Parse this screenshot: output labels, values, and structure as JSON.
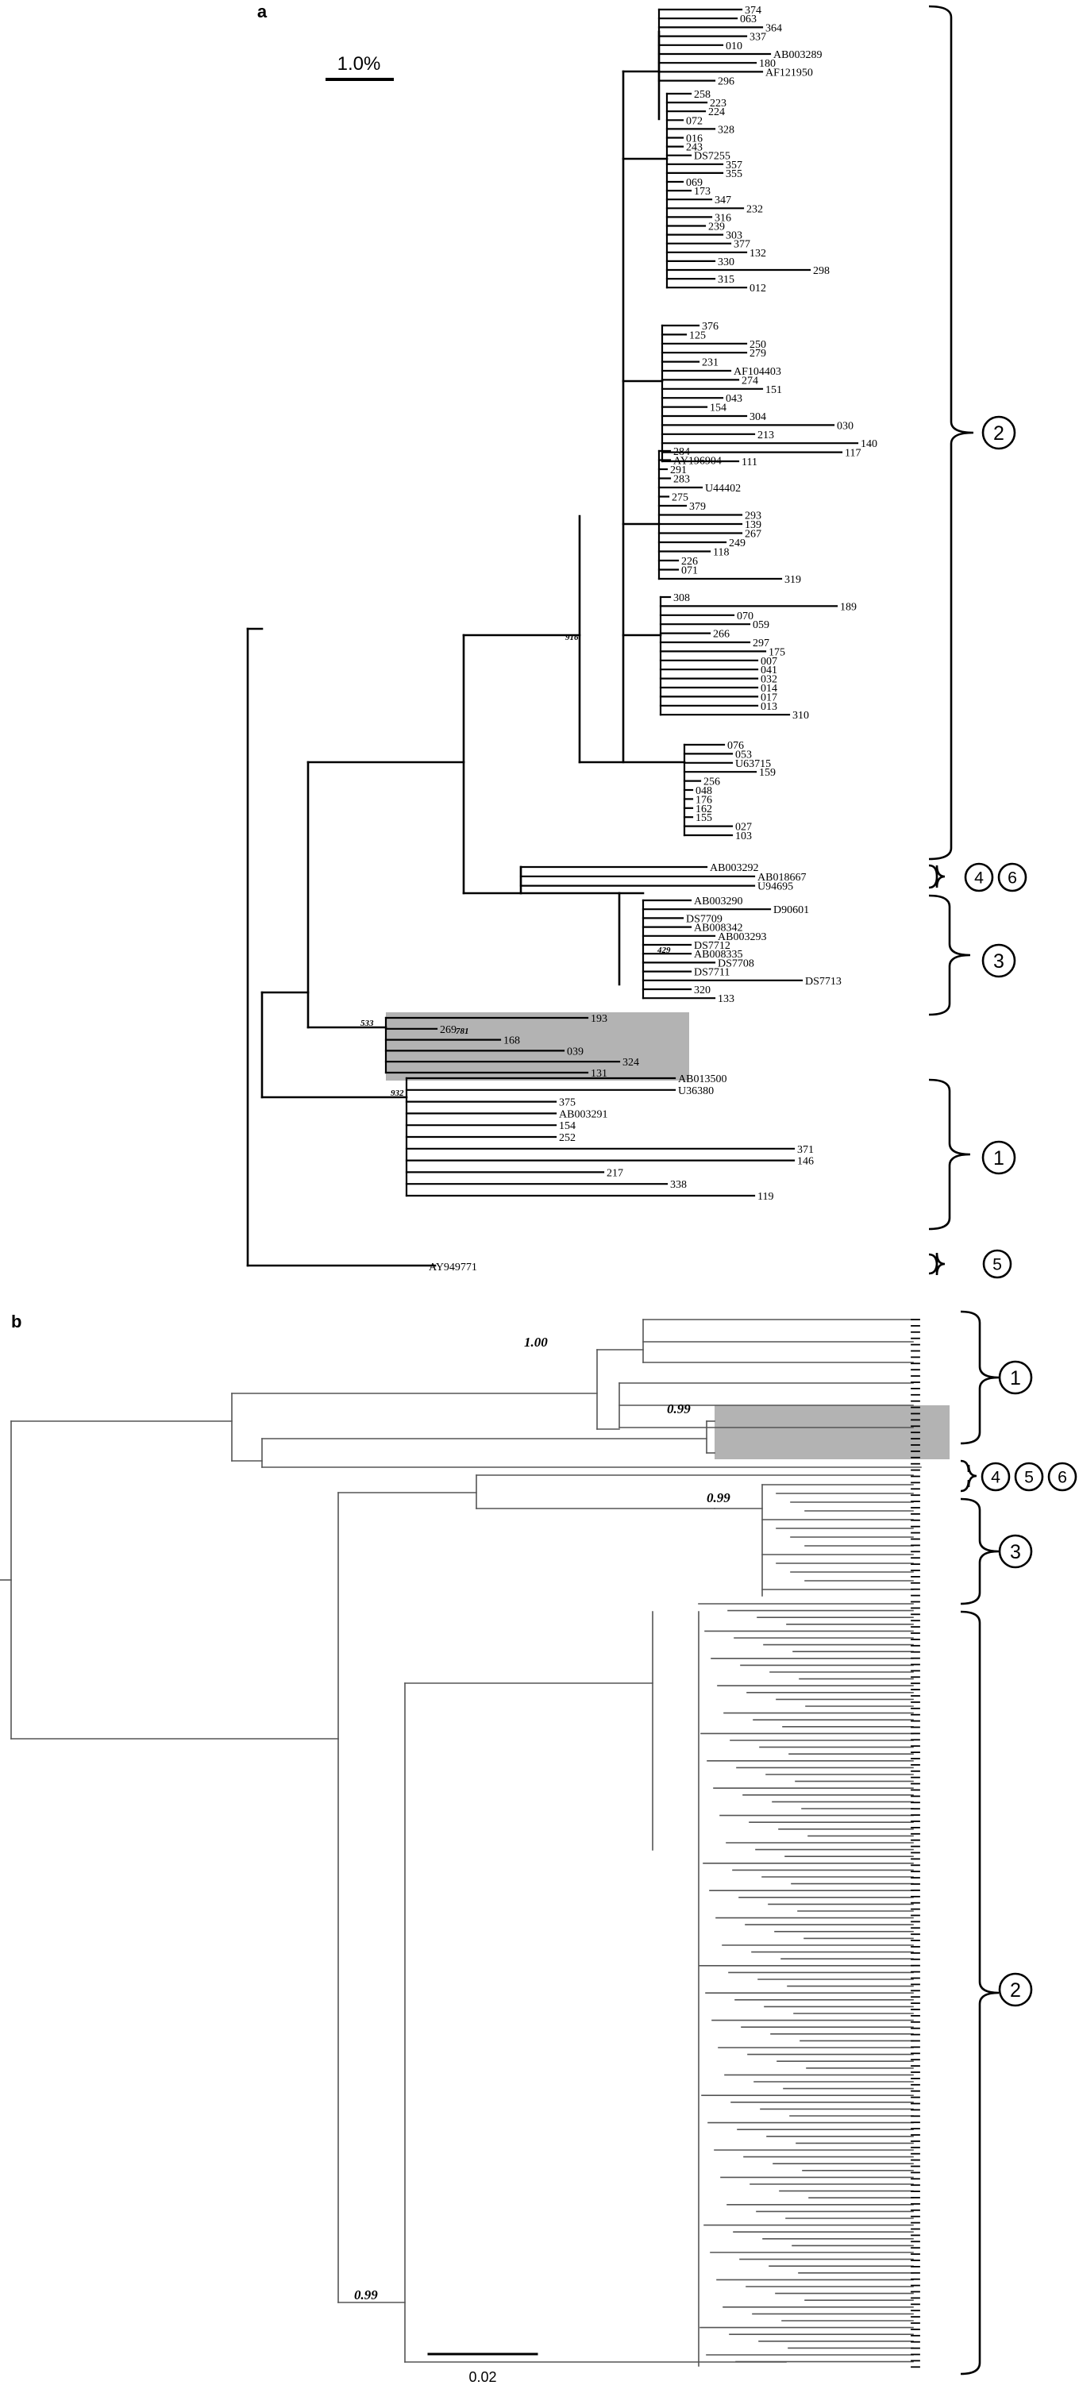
{
  "panel_a": {
    "letter": "a",
    "scale_label": "1.0%",
    "support_values": [
      "916",
      "429",
      "533",
      "781",
      "932"
    ],
    "clade_labels": [
      "2",
      "4",
      "6",
      "3",
      "1",
      "5"
    ],
    "leaves": {
      "cluster_top": [
        "374",
        "063",
        "364",
        "337",
        "010",
        "AB003289",
        "180",
        "AF121950",
        "296"
      ],
      "cluster_2a": [
        "258",
        "223",
        "224",
        "072",
        "328",
        "016",
        "243",
        "DS7255",
        "357",
        "355",
        "069",
        "173",
        "347",
        "232",
        "316",
        "239",
        "303",
        "377",
        "132",
        "330",
        "298",
        "315",
        "012"
      ],
      "cluster_2b": [
        "376",
        "125",
        "250",
        "279",
        "231",
        "AF104403",
        "274",
        "151",
        "043",
        "154",
        "304",
        "030",
        "213",
        "140",
        "117",
        "111"
      ],
      "cluster_2c": [
        "284",
        "AY196904",
        "291",
        "283",
        "U44402",
        "275",
        "379",
        "293",
        "139",
        "267",
        "249",
        "118",
        "226",
        "071",
        "319"
      ],
      "cluster_2d": [
        "308",
        "189",
        "070",
        "059",
        "266",
        "297",
        "175",
        "007",
        "041",
        "032",
        "014",
        "017",
        "013",
        "310"
      ],
      "cluster_2e": [
        "076",
        "053",
        "U63715",
        "159",
        "256",
        "048",
        "176",
        "162",
        "155",
        "027",
        "103"
      ],
      "cluster_46": [
        "AB003292",
        "AB018667",
        "U94695"
      ],
      "cluster_3": [
        "AB003290",
        "D90601",
        "DS7709",
        "AB008342",
        "AB003293",
        "DS7712",
        "AB008335",
        "DS7708",
        "DS7711",
        "DS7713",
        "320",
        "133"
      ],
      "shaded": [
        "193",
        "269",
        "168",
        "039",
        "324",
        "131"
      ],
      "cluster_1": [
        "AB013500",
        "U36380",
        "375",
        "AB003291",
        "154",
        "252",
        "371",
        "146",
        "217",
        "338",
        "119"
      ],
      "outgroup": [
        "AY949771"
      ]
    }
  },
  "panel_b": {
    "letter": "b",
    "scale_label": "0.02",
    "support_values": [
      "1.00",
      "0.99",
      "0.99",
      "0.99"
    ],
    "clade_labels": [
      "1",
      "4",
      "5",
      "6",
      "3",
      "2"
    ]
  },
  "colors": {
    "ink": "#000000",
    "shade": "#b3b3b3",
    "branch_b": "#555555"
  }
}
